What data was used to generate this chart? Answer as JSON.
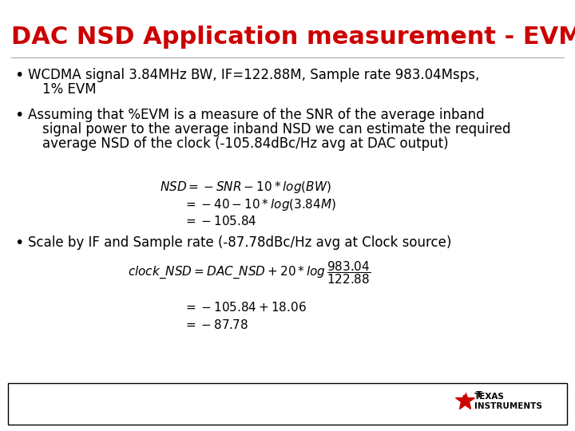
{
  "title": "DAC NSD Application measurement - EVM",
  "title_color": "#CC0000",
  "title_fontsize": 22,
  "background_color": "#FFFFFF",
  "bullet_fontsize": 12,
  "eq_fontsize": 11,
  "footer_text1": "TEXAS",
  "footer_text2": "INSTRUMENTS",
  "footer_text_color": "#000000",
  "ti_logo_color": "#CC0000"
}
